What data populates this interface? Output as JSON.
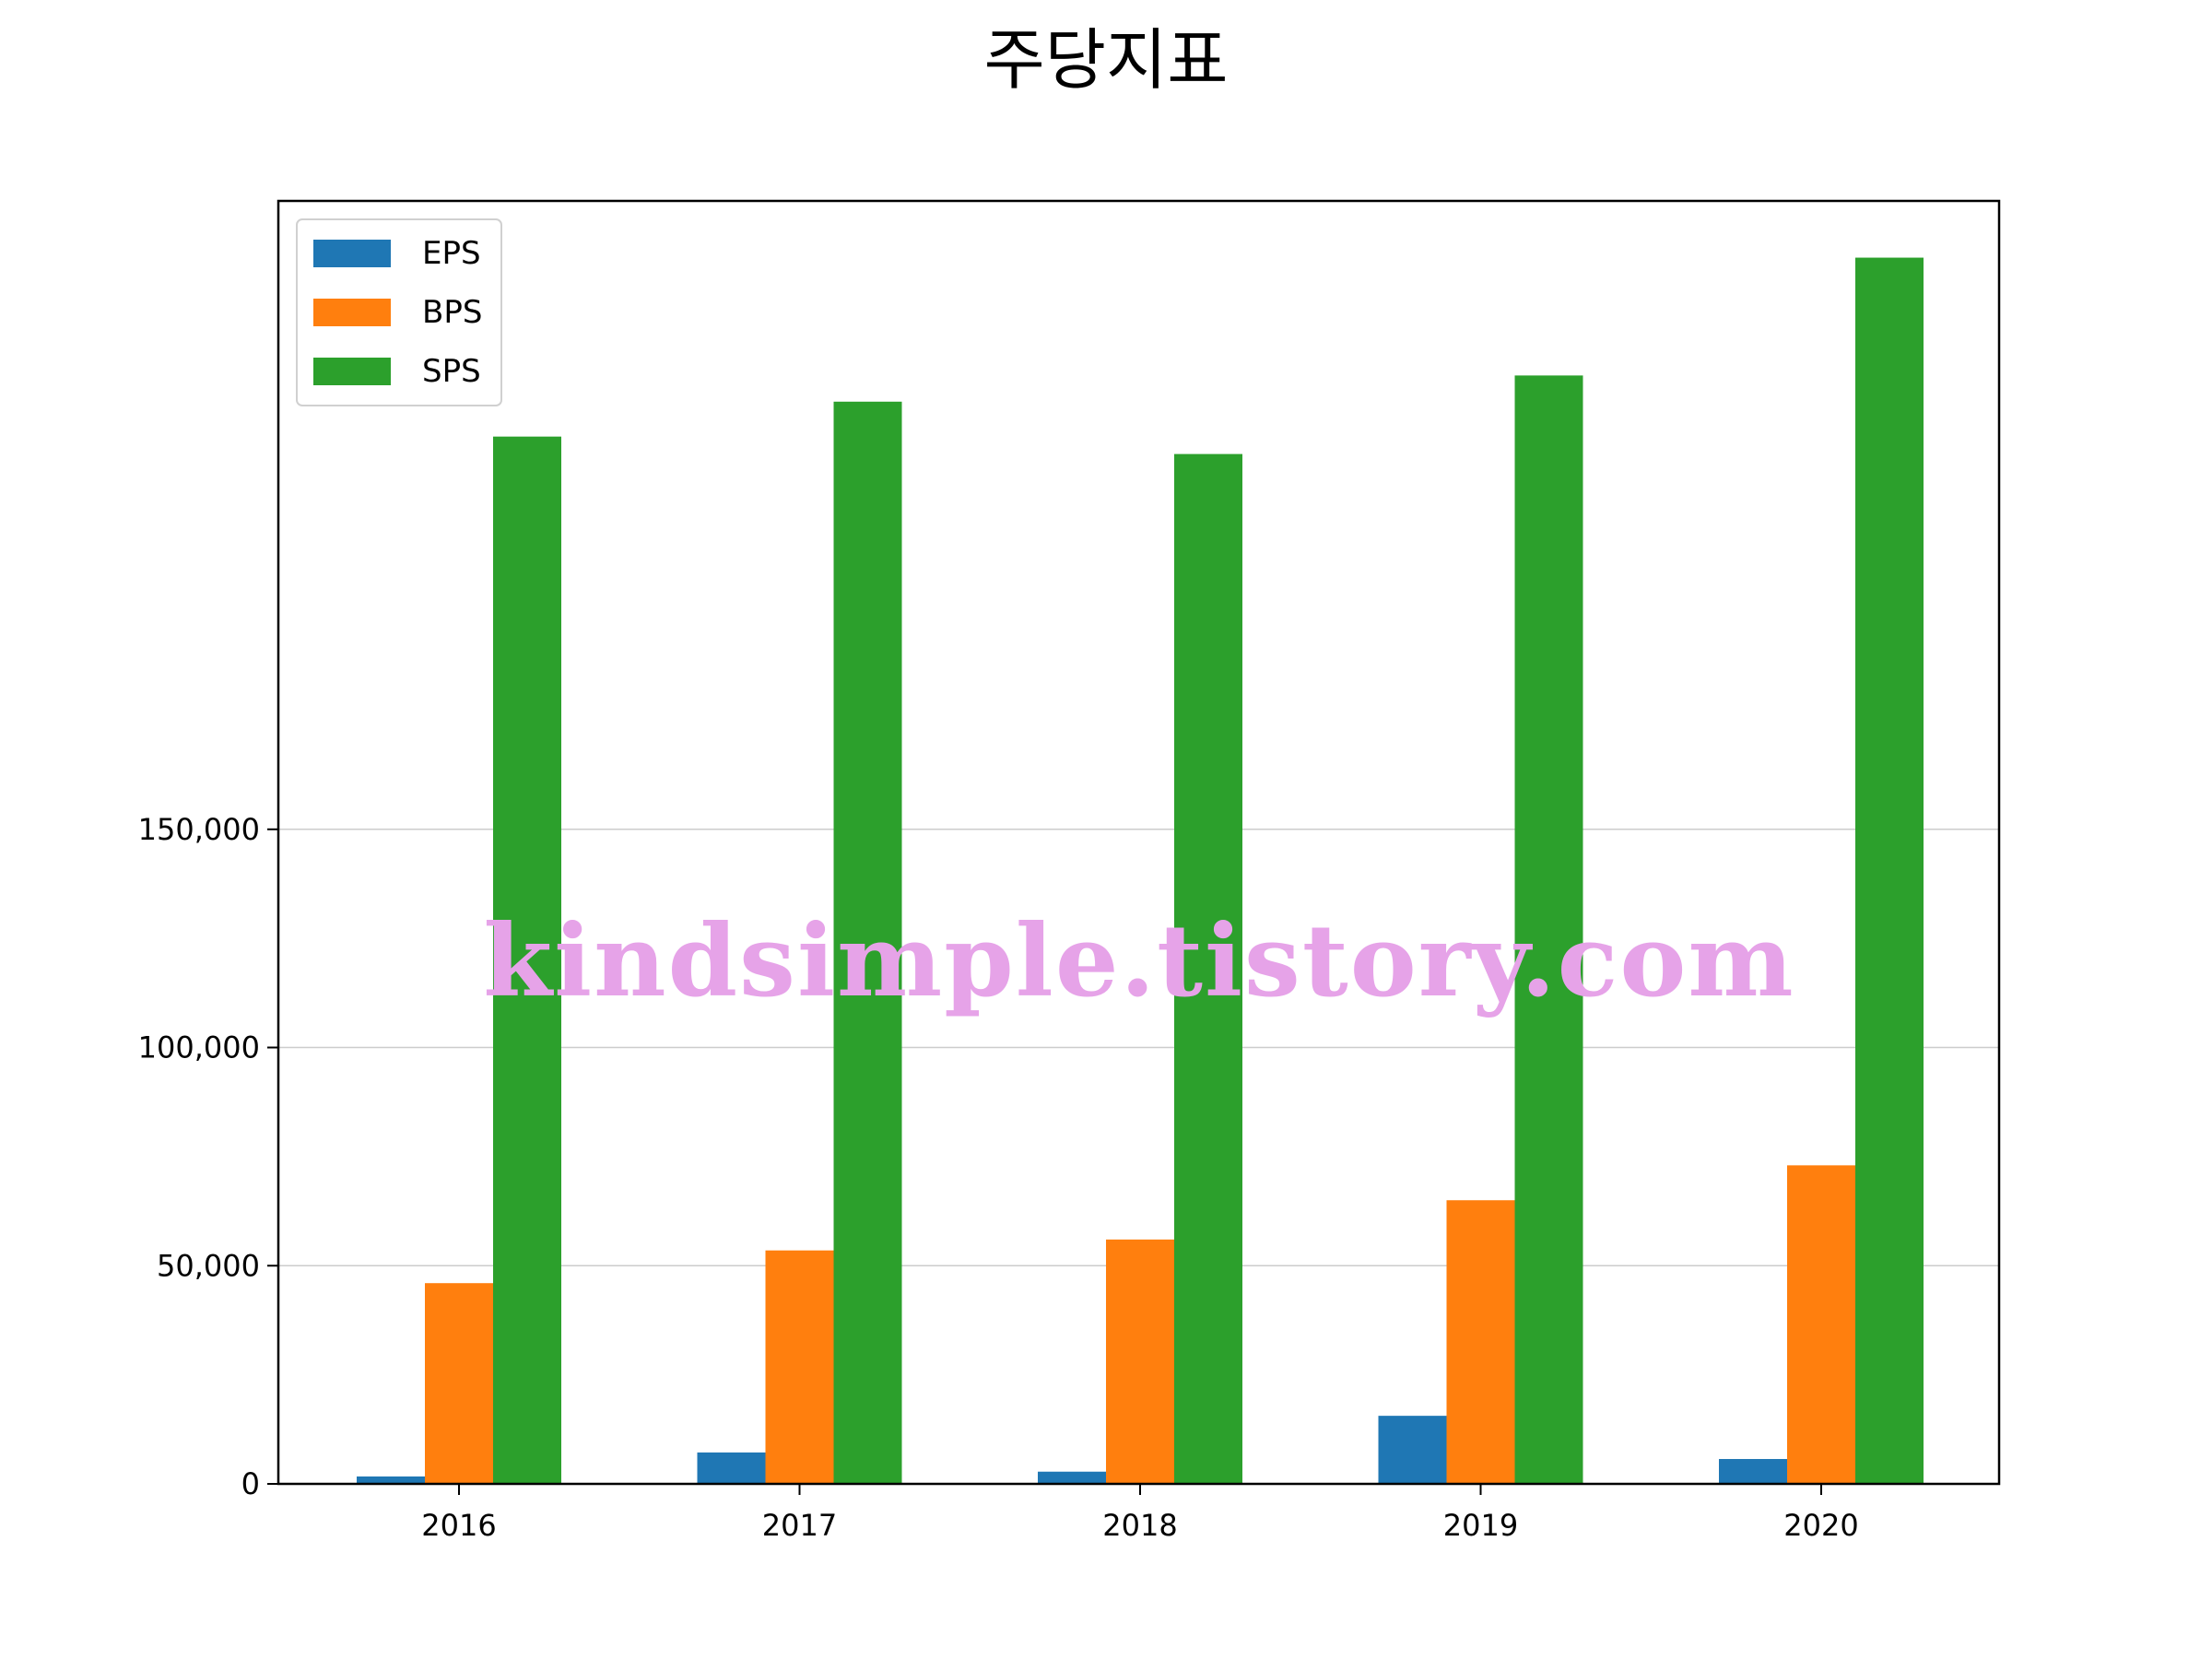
{
  "chart_data": {
    "type": "bar",
    "title": "주당지표",
    "xlabel": "",
    "ylabel": "",
    "categories": [
      "2016",
      "2017",
      "2018",
      "2019",
      "2020"
    ],
    "series": [
      {
        "name": "EPS",
        "color": "#1f77b4",
        "values": [
          1700,
          7200,
          2800,
          15600,
          5700
        ]
      },
      {
        "name": "BPS",
        "color": "#ff7f0e",
        "values": [
          46000,
          53500,
          56000,
          65000,
          73000
        ]
      },
      {
        "name": "SPS",
        "color": "#2ca02c",
        "values": [
          240000,
          248000,
          236000,
          254000,
          281000
        ]
      }
    ],
    "yticks": [
      0,
      50000,
      100000,
      150000
    ],
    "ytick_labels": [
      "0",
      "50,000",
      "100,000",
      "150,000"
    ],
    "ylim": [
      0,
      294000
    ],
    "grid": "y",
    "legend": "top-left",
    "watermark": "kindsimple.tistory.com"
  }
}
